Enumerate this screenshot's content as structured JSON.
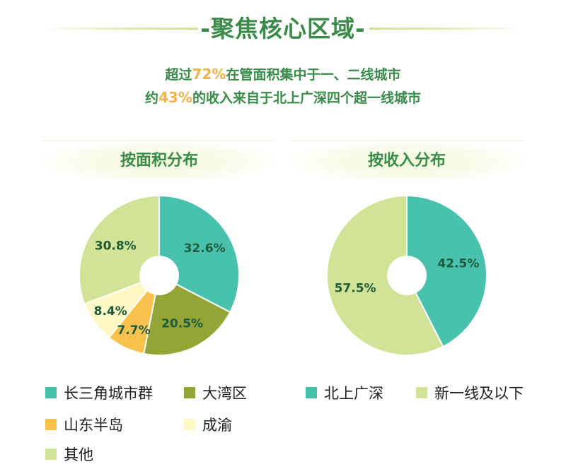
{
  "title": "-聚焦核心区域-",
  "subtitle": {
    "line1": {
      "pre": "超过",
      "num": "72%",
      "post": "在管面积集中于一、二线城市"
    },
    "line2": {
      "pre": "约",
      "num": "43%",
      "post": "的收入来自于北上广深四个超一线城市"
    }
  },
  "colors": {
    "teal": "#48c2ad",
    "olive": "#93a535",
    "orange": "#f8c24c",
    "pale_yellow": "#fff8c4",
    "light_green": "#d1e394",
    "title_green": "#3a8a4a",
    "highlight": "#f2b24a"
  },
  "chart_data": [
    {
      "type": "pie",
      "title": "按面积分布",
      "slices": [
        {
          "label": "长三角城市群",
          "value": 32.6,
          "display": "32.6%",
          "color": "#48c2ad"
        },
        {
          "label": "大湾区",
          "value": 20.5,
          "display": "20.5%",
          "color": "#93a535"
        },
        {
          "label": "山东半岛",
          "value": 7.7,
          "display": "7.7%",
          "color": "#f8c24c"
        },
        {
          "label": "成渝",
          "value": 8.4,
          "display": "8.4%",
          "color": "#fff8c4"
        },
        {
          "label": "其他",
          "value": 30.8,
          "display": "30.8%",
          "color": "#d1e394"
        }
      ],
      "donut": true
    },
    {
      "type": "pie",
      "title": "按收入分布",
      "slices": [
        {
          "label": "北上广深",
          "value": 42.5,
          "display": "42.5%",
          "color": "#48c2ad"
        },
        {
          "label": "新一线及以下",
          "value": 57.5,
          "display": "57.5%",
          "color": "#d1e394"
        }
      ],
      "donut": true
    }
  ]
}
